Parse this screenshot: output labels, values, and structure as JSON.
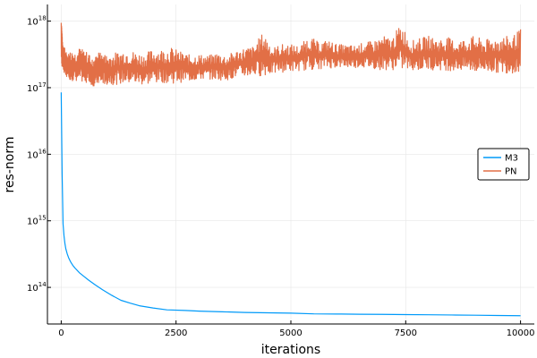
{
  "chart_data": {
    "type": "line",
    "title": "",
    "xlabel": "iterations",
    "ylabel": "res-norm",
    "xscale": "linear",
    "yscale": "log",
    "xlim": [
      -300,
      10300
    ],
    "ylim_exponent": [
      13.45,
      18.25
    ],
    "x_ticks": [
      0,
      2500,
      5000,
      7500,
      10000
    ],
    "x_tick_labels": [
      "0",
      "2500",
      "5000",
      "7500",
      "10000"
    ],
    "y_ticks_exponent": [
      14,
      15,
      16,
      17,
      18
    ],
    "y_tick_base": "10",
    "grid": true,
    "legend_position": "right",
    "series": [
      {
        "name": "M3",
        "color": "#009af9",
        "x": [
          0,
          10,
          20,
          40,
          60,
          80,
          100,
          130,
          160,
          200,
          250,
          300,
          400,
          500,
          600,
          750,
          900,
          1100,
          1300,
          1500,
          1700,
          2000,
          2300,
          2700,
          3000,
          3500,
          4000,
          4500,
          5000,
          5500,
          6000,
          6500,
          7000,
          7500,
          8000,
          8500,
          9000,
          9500,
          10000
        ],
        "y": [
          8.5e+16,
          2e+16,
          5000000000000000.0,
          900000000000000.0,
          600000000000000.0,
          460000000000000.0,
          380000000000000.0,
          320000000000000.0,
          280000000000000.0,
          245000000000000.0,
          215000000000000.0,
          195000000000000.0,
          165000000000000.0,
          145000000000000.0,
          128000000000000.0,
          108000000000000.0,
          92000000000000.0,
          76000000000000.0,
          64000000000000.0,
          58000000000000.0,
          53000000000000.0,
          49000000000000.0,
          46000000000000.0,
          45000000000000.0,
          44000000000000.0,
          43000000000000.0,
          42000000000000.0,
          41500000000000.0,
          41000000000000.0,
          40000000000000.0,
          39800000000000.0,
          39500000000000.0,
          39300000000000.0,
          39000000000000.0,
          38800000000000.0,
          38500000000000.0,
          38200000000000.0,
          37800000000000.0,
          37500000000000.0
        ]
      },
      {
        "name": "PN",
        "color": "#e26f46",
        "x": [
          0,
          20,
          50,
          100,
          150,
          200,
          300,
          400,
          500,
          600,
          700,
          800,
          900,
          1000,
          1200,
          1400,
          1600,
          1800,
          2000,
          2200,
          2400,
          2600,
          2800,
          3000,
          3200,
          3400,
          3600,
          3800,
          4000,
          4200,
          4400,
          4600,
          4800,
          5000,
          5200,
          5400,
          5600,
          5800,
          6000,
          6200,
          6400,
          6600,
          6800,
          7000,
          7200,
          7400,
          7600,
          7800,
          8000,
          8200,
          8400,
          8600,
          8800,
          9000,
          9200,
          9400,
          9600,
          9800,
          10000
        ],
        "upper": [
          1.4e+18,
          6e+17,
          4.5e+17,
          3.5e+17,
          3.2e+17,
          3.6e+17,
          3.5e+17,
          4e+17,
          3.6e+17,
          3.3e+17,
          2.5e+17,
          3.5e+17,
          3.2e+17,
          3.2e+17,
          3.4e+17,
          3.8e+17,
          3.5e+17,
          3.2e+17,
          3.8e+17,
          3.8e+17,
          4e+17,
          3.5e+17,
          3.1e+17,
          3.2e+17,
          3e+17,
          3.4e+17,
          3e+17,
          3.6e+17,
          4e+17,
          4.2e+17,
          6.8e+17,
          4e+17,
          4.5e+17,
          4.5e+17,
          4.2e+17,
          6e+17,
          4.8e+17,
          5.2e+17,
          4.5e+17,
          4.4e+17,
          4.3e+17,
          4.8e+17,
          5e+17,
          6e+17,
          5.5e+17,
          9e+17,
          5e+17,
          5.5e+17,
          6e+17,
          5.3e+17,
          5.8e+17,
          5e+17,
          5.5e+17,
          6e+17,
          5.2e+17,
          5.5e+17,
          6e+17,
          5.8e+17,
          7.5e+17
        ],
        "lower": [
          2.5e+17,
          2e+17,
          1.7e+17,
          1.5e+17,
          1.4e+17,
          1.3e+17,
          1.25e+17,
          1.22e+17,
          1.2e+17,
          1.18e+17,
          1.05e+17,
          1.1e+17,
          1.12e+17,
          1.1e+17,
          1.12e+17,
          1.15e+17,
          1.12e+17,
          1.1e+17,
          1.15e+17,
          1.2e+17,
          1.15e+17,
          1.2e+17,
          1.25e+17,
          1.3e+17,
          1.35e+17,
          1.3e+17,
          1.3e+17,
          1.4e+17,
          1.45e+17,
          1.5e+17,
          1.5e+17,
          1.6e+17,
          1.7e+17,
          1.75e+17,
          1.8e+17,
          1.85e+17,
          1.9e+17,
          1.95e+17,
          2e+17,
          2e+17,
          2e+17,
          2e+17,
          1.9e+17,
          1.85e+17,
          1.85e+17,
          1.85e+17,
          1.85e+17,
          1.8e+17,
          1.85e+17,
          1.85e+17,
          1.8e+17,
          1.8e+17,
          1.75e+17,
          1.7e+17,
          1.7e+17,
          1.7e+17,
          1.65e+17,
          1.65e+17,
          1.7e+17
        ]
      }
    ]
  }
}
